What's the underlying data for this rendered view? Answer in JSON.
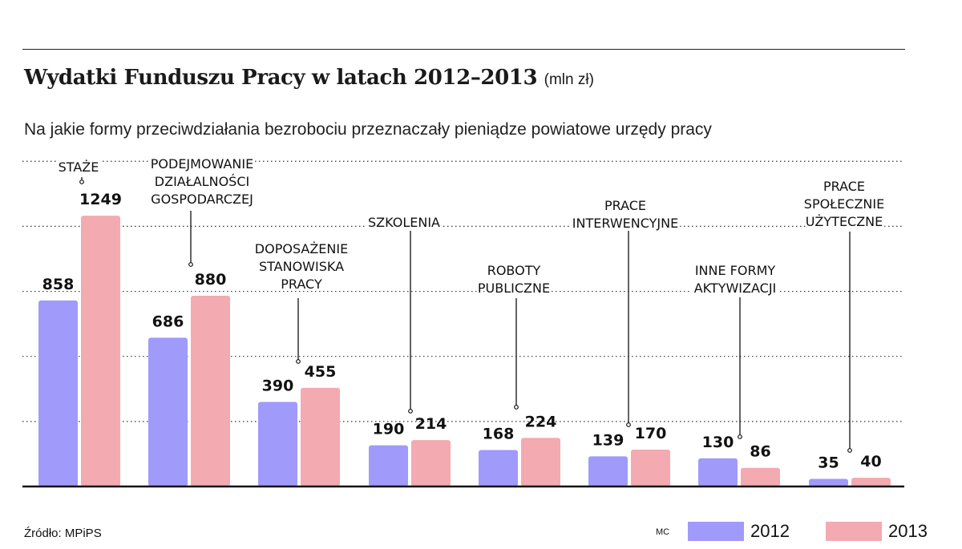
{
  "title": "Wydatki Funduszu Pracy w latach 2012–2013",
  "title_unit": "(mln zł)",
  "subtitle": "Na jakie formy przeciwdziałania bezrobociu przeznaczały pieniądze powiatowe urzędy pracy",
  "source": "Źródło: MPiPS",
  "credit": "MC",
  "colors": {
    "s2012": "#a09afa",
    "s2013": "#f3aab1",
    "axis": "#111111",
    "grid": "#333333"
  },
  "legend": [
    {
      "label": "2012",
      "color": "#a09afa"
    },
    {
      "label": "2013",
      "color": "#f3aab1"
    }
  ],
  "chart_data": {
    "type": "bar",
    "categories": [
      [
        "STAŻE"
      ],
      [
        "PODEJMOWANIE",
        "DZIAŁALNOŚCI",
        "GOSPODARCZEJ"
      ],
      [
        "DOPOSAŻENIE",
        "STANOWISKA",
        "PRACY"
      ],
      [
        "SZKOLENIA"
      ],
      [
        "ROBOTY",
        "PUBLICZNE"
      ],
      [
        "PRACE",
        "INTERWENCYJNE"
      ],
      [
        "INNE FORMY",
        "AKTYWIZACJI"
      ],
      [
        "PRACE",
        "SPOŁECZNIE",
        "UŻYTECZNE"
      ]
    ],
    "series": [
      {
        "name": "2012",
        "values": [
          858,
          686,
          390,
          190,
          168,
          139,
          130,
          35
        ]
      },
      {
        "name": "2013",
        "values": [
          1249,
          880,
          455,
          214,
          224,
          170,
          86,
          40
        ]
      }
    ],
    "ylim": [
      0,
      1500
    ],
    "grid": true
  }
}
